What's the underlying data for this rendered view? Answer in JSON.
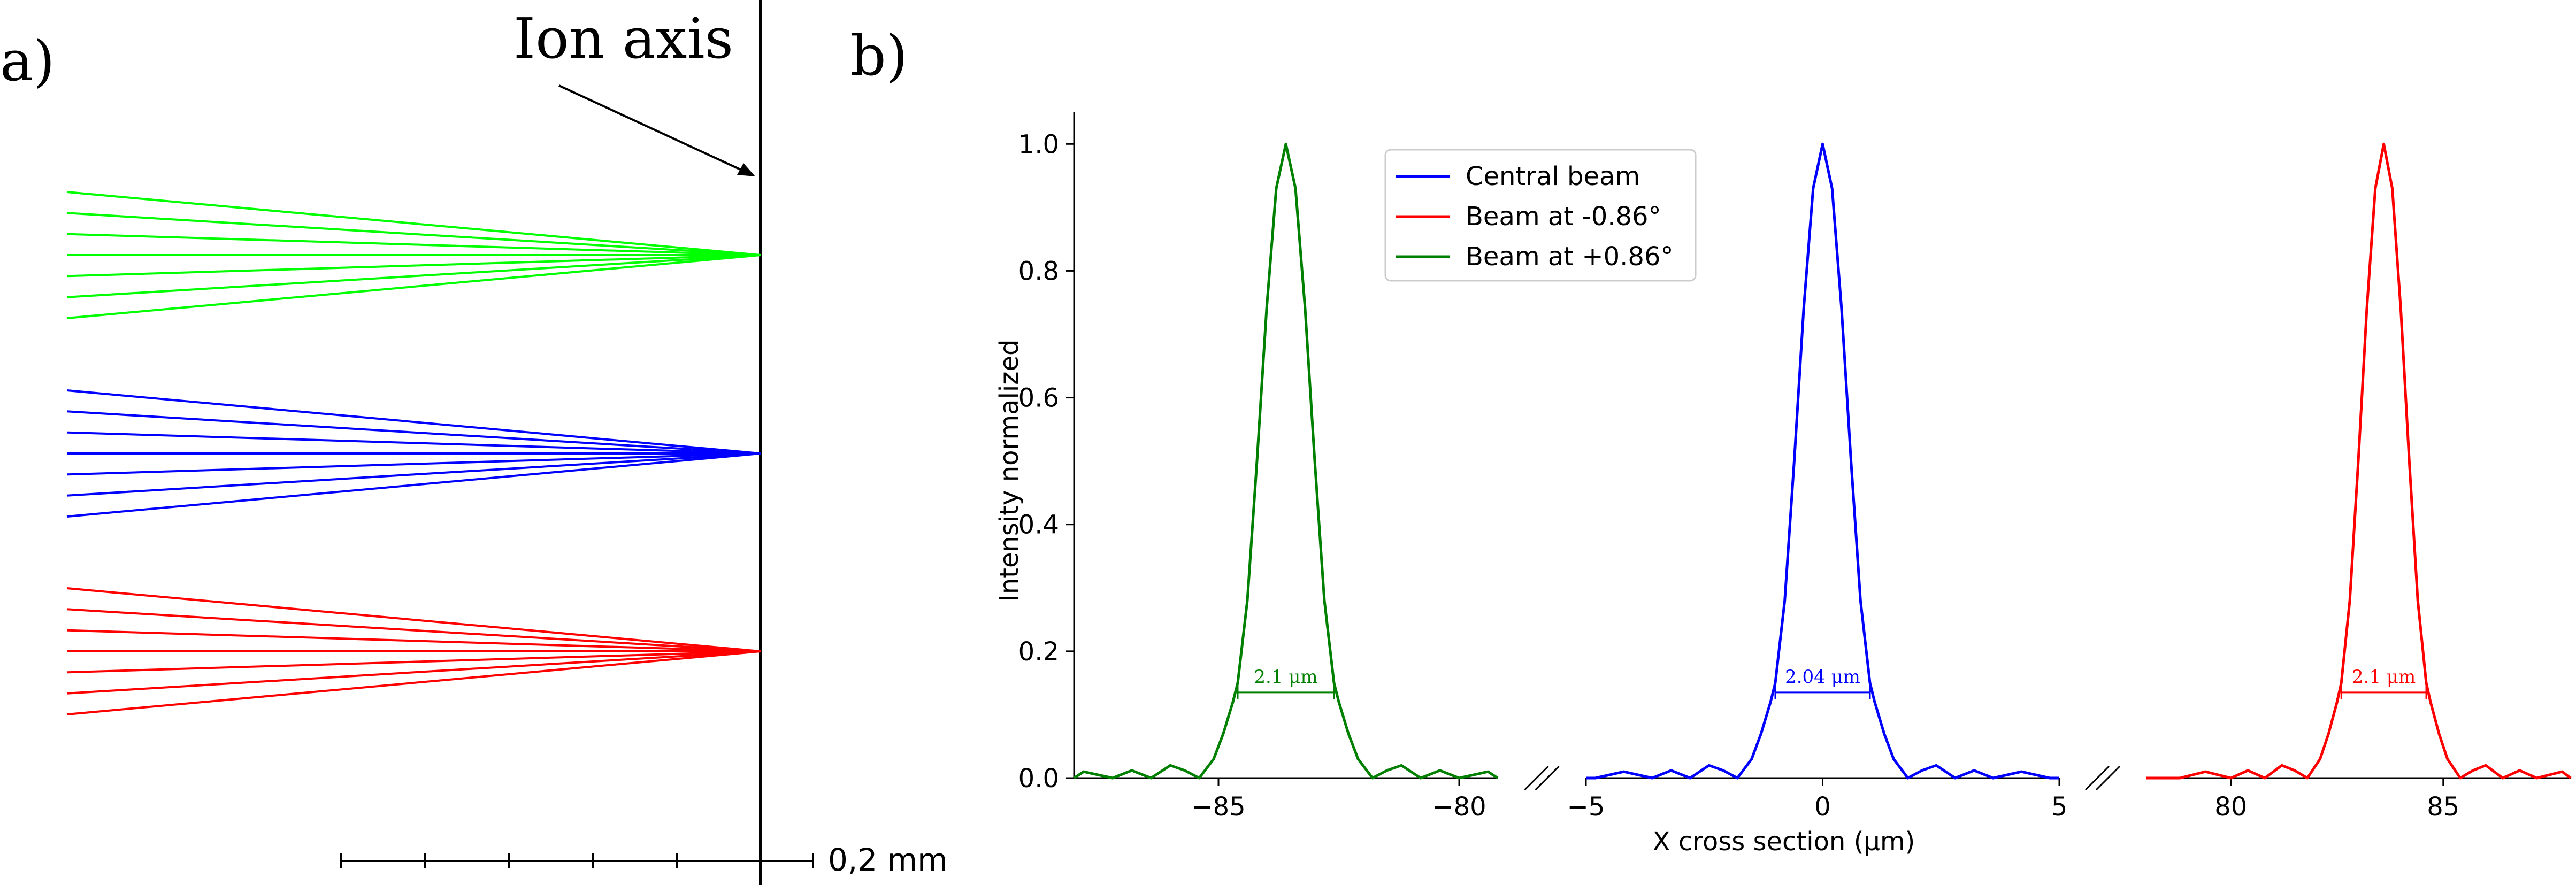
{
  "colors": {
    "central": "#0000ff",
    "minus": "#ff0000",
    "plus": "#008000",
    "fan_green": "#00ff00",
    "fan_blue": "#0000ff",
    "fan_red": "#ff0000",
    "axis": "#000000"
  },
  "panel_a": {
    "label": "a)",
    "ion_axis_label": "Ion axis",
    "scale_label": "0,2 mm",
    "scale_ticks": 5,
    "fans": [
      {
        "name": "green",
        "color_key": "fan_green",
        "rays": 7
      },
      {
        "name": "blue",
        "color_key": "fan_blue",
        "rays": 7
      },
      {
        "name": "red",
        "color_key": "fan_red",
        "rays": 7
      }
    ]
  },
  "panel_b": {
    "label": "b)"
  },
  "chart_data": {
    "type": "line",
    "xlabel": "X cross section (μm)",
    "ylabel": "Intensity normalized",
    "ylim": [
      0,
      1.05
    ],
    "yticks": [
      "0.0",
      "0.2",
      "0.4",
      "0.6",
      "0.8",
      "1.0"
    ],
    "grid": false,
    "legend_position": "upper-left",
    "segments": [
      {
        "xlim": [
          -88,
          -79.2
        ],
        "xticks": [
          -85,
          -80
        ],
        "xtick_labels": [
          "−85",
          "−80"
        ]
      },
      {
        "xlim": [
          -5,
          5
        ],
        "xticks": [
          -5,
          0,
          5
        ],
        "xtick_labels": [
          "−5",
          "0",
          "5"
        ]
      },
      {
        "xlim": [
          78,
          88
        ],
        "xticks": [
          80,
          85
        ],
        "xtick_labels": [
          "80",
          "85"
        ]
      }
    ],
    "series": [
      {
        "name": "Central beam",
        "color_key": "central",
        "segment": 1,
        "center": 0.0,
        "fwhm_label": "2.04 μm",
        "fwhm_y": 0.135
      },
      {
        "name": "Beam at -0.86°",
        "color_key": "minus",
        "segment": 2,
        "center": 83.6,
        "fwhm_label": "2.1 μm",
        "fwhm_y": 0.135
      },
      {
        "name": "Beam at +0.86°",
        "color_key": "plus",
        "segment": 0,
        "center": -83.6,
        "fwhm_label": "2.1 μm",
        "fwhm_y": 0.135
      }
    ],
    "profile": {
      "x_offsets": [
        -4.8,
        -4.2,
        -3.6,
        -3.2,
        -2.8,
        -2.4,
        -2.1,
        -1.8,
        -1.5,
        -1.3,
        -1.1,
        -1.0,
        -0.8,
        -0.6,
        -0.4,
        -0.2,
        0.0,
        0.2,
        0.4,
        0.6,
        0.8,
        1.0,
        1.1,
        1.3,
        1.5,
        1.8,
        2.1,
        2.4,
        2.8,
        3.2,
        3.6,
        4.2,
        4.8
      ],
      "values": [
        0.0,
        0.01,
        0.0,
        0.012,
        0.0,
        0.02,
        0.012,
        0.0,
        0.03,
        0.07,
        0.12,
        0.15,
        0.28,
        0.5,
        0.74,
        0.93,
        1.0,
        0.93,
        0.74,
        0.5,
        0.28,
        0.15,
        0.12,
        0.07,
        0.03,
        0.0,
        0.012,
        0.02,
        0.0,
        0.012,
        0.0,
        0.01,
        0.0
      ]
    }
  }
}
